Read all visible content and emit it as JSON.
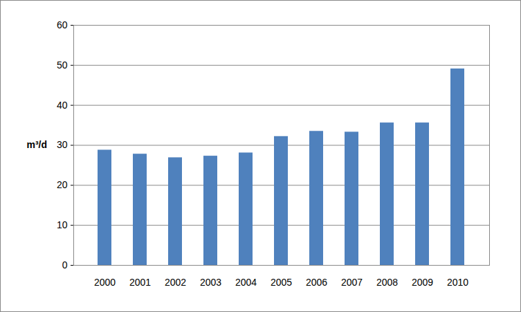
{
  "chart_data": {
    "type": "bar",
    "categories": [
      "2000",
      "2001",
      "2002",
      "2003",
      "2004",
      "2005",
      "2006",
      "2007",
      "2008",
      "2009",
      "2010"
    ],
    "values": [
      28.8,
      27.8,
      26.9,
      27.3,
      28.1,
      32.2,
      33.5,
      33.3,
      35.6,
      35.6,
      49.1
    ],
    "y_label": "m³/d",
    "color": "#4f81bd",
    "ylim": [
      0,
      60
    ],
    "yticks": [
      0,
      10,
      20,
      30,
      40,
      50,
      60
    ],
    "grid": true
  }
}
